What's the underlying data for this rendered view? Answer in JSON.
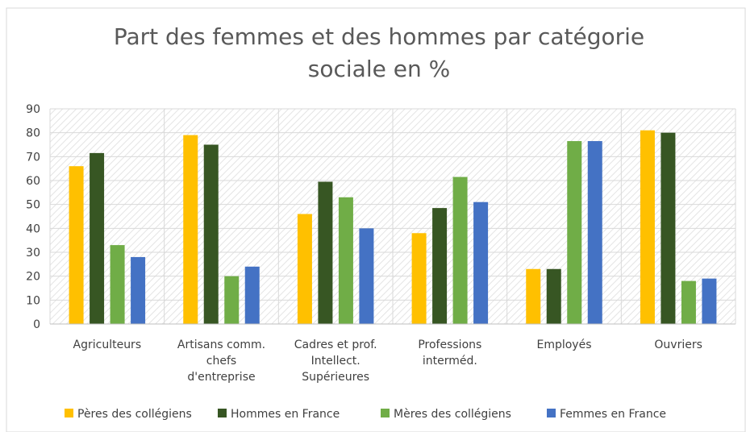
{
  "chart_data": {
    "type": "bar",
    "title": "Part des femmes et des hommes par catégorie sociale en %",
    "categories": [
      "Agriculteurs",
      "Artisans comm. chefs d'entreprise",
      "Cadres et prof. Intellect. Supérieures",
      "Professions interméd.",
      "Employés",
      "Ouvriers"
    ],
    "series": [
      {
        "name": "Pères des collégiens",
        "color": "#ffc000",
        "values": [
          66,
          79,
          46,
          38,
          23,
          81
        ]
      },
      {
        "name": "Hommes en France",
        "color": "#375623",
        "values": [
          71.5,
          75,
          59.5,
          48.5,
          23,
          80
        ]
      },
      {
        "name": "Mères des collégiens",
        "color": "#70ad47",
        "values": [
          33,
          20,
          53,
          61.5,
          76.5,
          18
        ]
      },
      {
        "name": "Femmes en France",
        "color": "#4472c4",
        "values": [
          28,
          24,
          40,
          51,
          76.5,
          19
        ]
      }
    ],
    "ylim": [
      0,
      90
    ],
    "yticks": [
      0,
      10,
      20,
      30,
      40,
      50,
      60,
      70,
      80,
      90
    ],
    "grid": true,
    "legend": "bottom"
  }
}
